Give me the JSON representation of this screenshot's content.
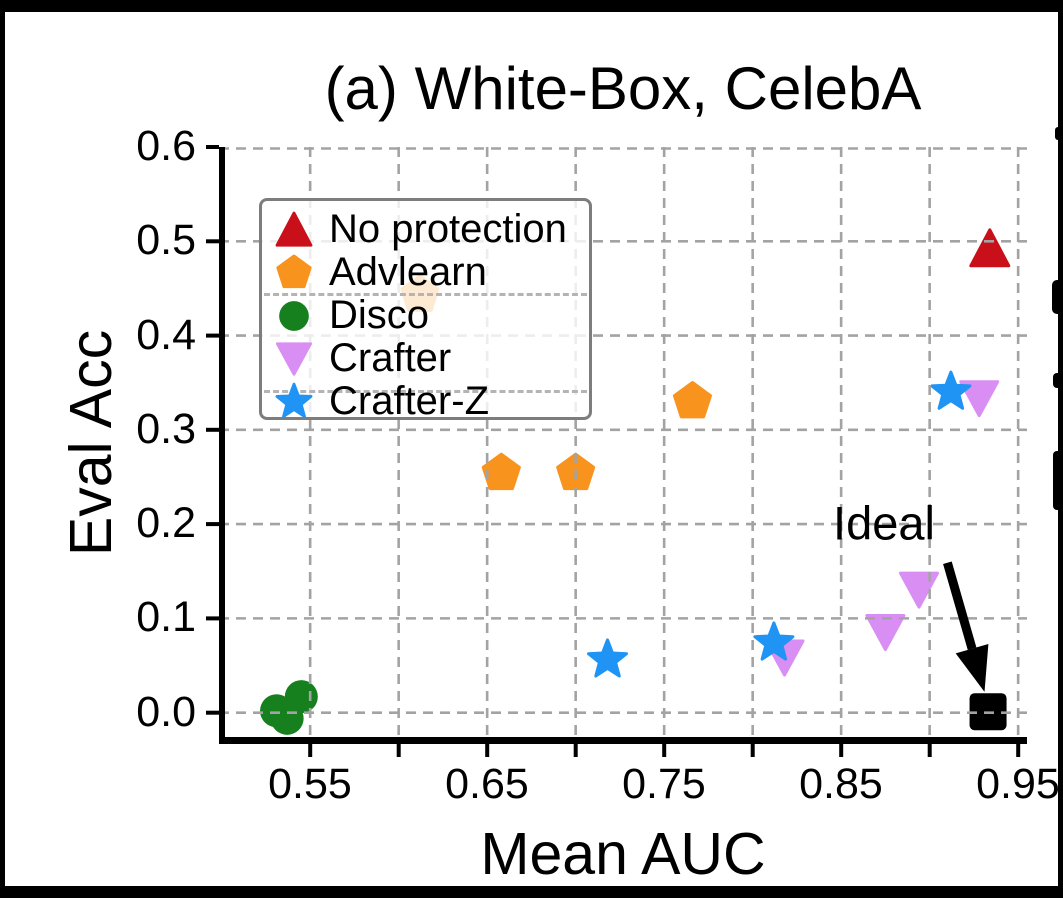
{
  "figure": {
    "title": "(a) White-Box, CelebA",
    "x_axis_label": "Mean AUC",
    "y_axis_label": "Eval Acc",
    "annotation_label": "Ideal",
    "background_color": "#ffffff",
    "crop_border_color": "#000000",
    "gridline_color": "#a3a3a3",
    "spine_color": "#000000"
  },
  "legend": {
    "position": "upper-left",
    "items": [
      {
        "label": "No protection",
        "marker": "triangle-up-icon",
        "color": "#c9101a"
      },
      {
        "label": "Advlearn",
        "marker": "pentagon-icon",
        "color": "#f8941e"
      },
      {
        "label": "Disco",
        "marker": "circle-icon",
        "color": "#15801d"
      },
      {
        "label": "Crafter",
        "marker": "triangle-down-icon",
        "color": "#d98ef3"
      },
      {
        "label": "Crafter-Z",
        "marker": "star-icon",
        "color": "#1f94f4"
      }
    ]
  },
  "chart_data": {
    "type": "scatter",
    "title": "(a) White-Box, CelebA",
    "xlabel": "Mean AUC",
    "ylabel": "Eval Acc",
    "xlim": [
      0.4985,
      0.955
    ],
    "ylim": [
      -0.029,
      0.6
    ],
    "grid": true,
    "grid_style": "dashed",
    "grid_over_markers": true,
    "x_gridlines": [
      0.55,
      0.6,
      0.65,
      0.7,
      0.75,
      0.8,
      0.85,
      0.9,
      0.95
    ],
    "y_gridlines": [
      0.0,
      0.1,
      0.2,
      0.3,
      0.4,
      0.5,
      0.6
    ],
    "x_tick_labels": [
      {
        "value": 0.55,
        "label": "0.55"
      },
      {
        "value": 0.65,
        "label": "0.65"
      },
      {
        "value": 0.75,
        "label": "0.75"
      },
      {
        "value": 0.85,
        "label": "0.85"
      },
      {
        "value": 0.95,
        "label": "0.95"
      }
    ],
    "y_tick_labels": [
      {
        "value": 0.6,
        "label": "0.6"
      },
      {
        "value": 0.5,
        "label": "0.5"
      },
      {
        "value": 0.4,
        "label": "0.4"
      },
      {
        "value": 0.3,
        "label": "0.3"
      },
      {
        "value": 0.2,
        "label": "0.2"
      },
      {
        "value": 0.1,
        "label": "0.1"
      },
      {
        "value": 0.0,
        "label": "0.0"
      }
    ],
    "series": [
      {
        "name": "No protection",
        "marker": "triangle-up",
        "color": "#c9101a",
        "points": [
          [
            0.934,
            0.492
          ]
        ]
      },
      {
        "name": "Advlearn",
        "marker": "pentagon",
        "color": "#f8941e",
        "points": [
          [
            0.612,
            0.443
          ],
          [
            0.658,
            0.254
          ],
          [
            0.7,
            0.254
          ],
          [
            0.766,
            0.33
          ]
        ],
        "note_behind_legend": [
          0.612,
          0.443
        ]
      },
      {
        "name": "Disco",
        "marker": "circle",
        "color": "#15801d",
        "points": [
          [
            0.531,
            0.002
          ],
          [
            0.537,
            -0.006
          ],
          [
            0.545,
            0.017
          ]
        ]
      },
      {
        "name": "Crafter",
        "marker": "triangle-down",
        "color": "#d98ef3",
        "points": [
          [
            0.818,
            0.058
          ],
          [
            0.875,
            0.085
          ],
          [
            0.894,
            0.13
          ],
          [
            0.928,
            0.333
          ]
        ]
      },
      {
        "name": "Crafter-Z",
        "marker": "star",
        "color": "#1f94f4",
        "points": [
          [
            0.718,
            0.056
          ],
          [
            0.812,
            0.074
          ],
          [
            0.912,
            0.34
          ]
        ]
      }
    ],
    "ideal_point": {
      "name": "Ideal",
      "marker": "square",
      "color": "#000000",
      "point": [
        0.933,
        0.001
      ]
    },
    "annotation": {
      "text": "Ideal",
      "text_position": [
        0.874,
        0.2015
      ],
      "arrow_from": [
        0.91,
        0.159
      ],
      "arrow_to": [
        0.931,
        0.022
      ],
      "arrow_color": "#000000"
    }
  }
}
